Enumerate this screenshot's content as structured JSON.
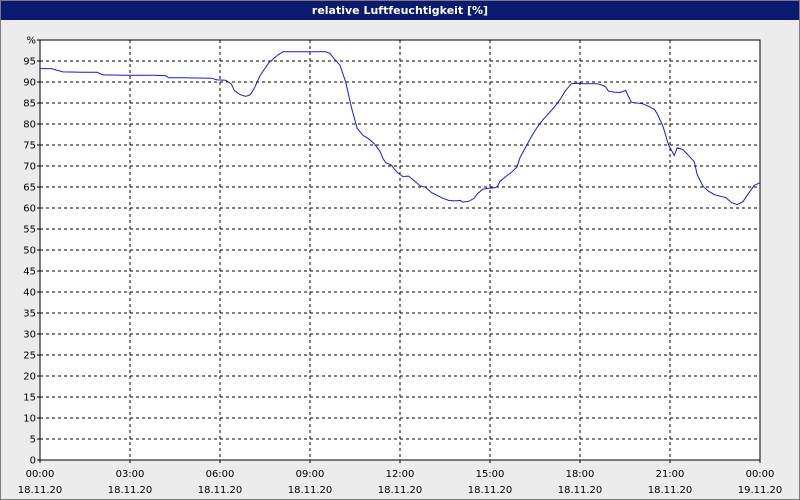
{
  "window": {
    "title": "relative Luftfeuchtigkeit [%]"
  },
  "colors": {
    "title_bar": "#0b1a6e",
    "series_line": "#1a1ad6",
    "grid": "#000000",
    "plot_background": "#ffffff",
    "panel_background": "#ececec"
  },
  "chart_data": {
    "type": "line",
    "title": "relative Luftfeuchtigkeit [%]",
    "ylabel": "",
    "xlabel": "",
    "ylim": [
      0,
      100
    ],
    "yticks": [
      "0",
      "5",
      "10",
      "15",
      "20",
      "25",
      "30",
      "35",
      "40",
      "45",
      "50",
      "55",
      "60",
      "65",
      "70",
      "75",
      "80",
      "85",
      "90",
      "95",
      "%"
    ],
    "xlim": [
      0,
      24
    ],
    "xticks": [
      {
        "time": "00:00",
        "date": "18.11.20"
      },
      {
        "time": "03:00",
        "date": "18.11.20"
      },
      {
        "time": "06:00",
        "date": "18.11.20"
      },
      {
        "time": "09:00",
        "date": "18.11.20"
      },
      {
        "time": "12:00",
        "date": "18.11.20"
      },
      {
        "time": "15:00",
        "date": "18.11.20"
      },
      {
        "time": "18:00",
        "date": "18.11.20"
      },
      {
        "time": "21:00",
        "date": "18.11.20"
      },
      {
        "time": "00:00",
        "date": "19.11.20"
      }
    ],
    "grid": true,
    "grid_style": "dashed",
    "series": [
      {
        "points": [
          [
            0.0,
            93.2
          ],
          [
            0.4,
            93.2
          ],
          [
            0.8,
            92.4
          ],
          [
            1.5,
            92.3
          ],
          [
            2.0,
            92.3
          ],
          [
            2.2,
            91.7
          ],
          [
            3.0,
            91.6
          ],
          [
            4.0,
            91.6
          ],
          [
            4.4,
            91.5
          ],
          [
            4.5,
            91.0
          ],
          [
            5.0,
            91.0
          ],
          [
            6.0,
            90.9
          ],
          [
            6.2,
            90.5
          ],
          [
            6.5,
            90.4
          ],
          [
            6.7,
            89.5
          ],
          [
            6.8,
            88.0
          ],
          [
            7.0,
            87.0
          ],
          [
            7.2,
            86.6
          ],
          [
            7.35,
            86.9
          ],
          [
            7.5,
            88.5
          ],
          [
            7.7,
            91.5
          ],
          [
            8.0,
            94.5
          ],
          [
            8.3,
            96.3
          ],
          [
            8.5,
            97.2
          ],
          [
            9.0,
            97.2
          ],
          [
            9.5,
            97.2
          ],
          [
            10.0,
            97.2
          ],
          [
            10.15,
            96.8
          ],
          [
            10.3,
            95.5
          ],
          [
            10.5,
            94.0
          ],
          [
            10.7,
            90.0
          ],
          [
            10.9,
            84.0
          ],
          [
            11.1,
            79.0
          ],
          [
            11.3,
            77.3
          ],
          [
            11.5,
            76.5
          ],
          [
            11.7,
            75.3
          ],
          [
            11.9,
            73.5
          ],
          [
            12.0,
            71.8
          ],
          [
            12.1,
            70.8
          ],
          [
            12.3,
            70.2
          ],
          [
            12.5,
            68.5
          ],
          [
            12.7,
            67.5
          ],
          [
            12.9,
            67.6
          ],
          [
            13.1,
            66.5
          ],
          [
            13.3,
            65.3
          ],
          [
            13.5,
            64.9
          ],
          [
            13.7,
            63.7
          ],
          [
            13.9,
            63.0
          ],
          [
            14.1,
            62.3
          ],
          [
            14.3,
            61.8
          ],
          [
            14.5,
            61.7
          ],
          [
            14.7,
            61.8
          ],
          [
            14.8,
            61.4
          ],
          [
            15.0,
            61.6
          ],
          [
            15.2,
            62.3
          ],
          [
            15.3,
            63.3
          ],
          [
            15.5,
            64.5
          ],
          [
            15.7,
            64.7
          ],
          [
            15.9,
            64.8
          ],
          [
            16.0,
            65.0
          ],
          [
            16.1,
            66.3
          ],
          [
            16.3,
            67.5
          ],
          [
            16.5,
            68.5
          ],
          [
            16.7,
            69.8
          ],
          [
            16.8,
            72.0
          ],
          [
            17.0,
            74.5
          ],
          [
            17.2,
            77.0
          ],
          [
            17.4,
            79.2
          ],
          [
            17.6,
            81.0
          ],
          [
            17.8,
            82.5
          ],
          [
            18.0,
            84.0
          ],
          [
            18.2,
            85.8
          ],
          [
            18.4,
            88.0
          ],
          [
            18.6,
            89.6
          ],
          [
            18.8,
            89.7
          ],
          [
            19.0,
            89.6
          ],
          [
            19.5,
            89.6
          ],
          [
            19.7,
            89.2
          ],
          [
            19.8,
            88.8
          ],
          [
            19.9,
            87.8
          ],
          [
            20.1,
            87.6
          ],
          [
            20.3,
            87.5
          ],
          [
            20.5,
            88.0
          ],
          [
            20.6,
            86.5
          ],
          [
            20.7,
            85.2
          ],
          [
            20.9,
            85.0
          ],
          [
            21.1,
            84.8
          ],
          [
            21.3,
            84.2
          ],
          [
            21.5,
            83.5
          ],
          [
            21.6,
            82.5
          ],
          [
            21.8,
            79.5
          ],
          [
            22.0,
            75.0
          ],
          [
            22.2,
            72.5
          ],
          [
            22.3,
            74.3
          ],
          [
            22.5,
            73.9
          ],
          [
            22.7,
            72.5
          ],
          [
            22.9,
            71.0
          ],
          [
            23.0,
            68.0
          ],
          [
            23.2,
            65.2
          ],
          [
            23.4,
            64.0
          ],
          [
            23.6,
            63.2
          ],
          [
            23.8,
            62.8
          ],
          [
            24.0,
            62.5
          ],
          [
            24.2,
            61.3
          ],
          [
            24.4,
            60.8
          ],
          [
            24.6,
            61.5
          ],
          [
            24.8,
            63.5
          ],
          [
            25.0,
            65.4
          ],
          [
            25.2,
            66.0
          ]
        ]
      }
    ]
  }
}
